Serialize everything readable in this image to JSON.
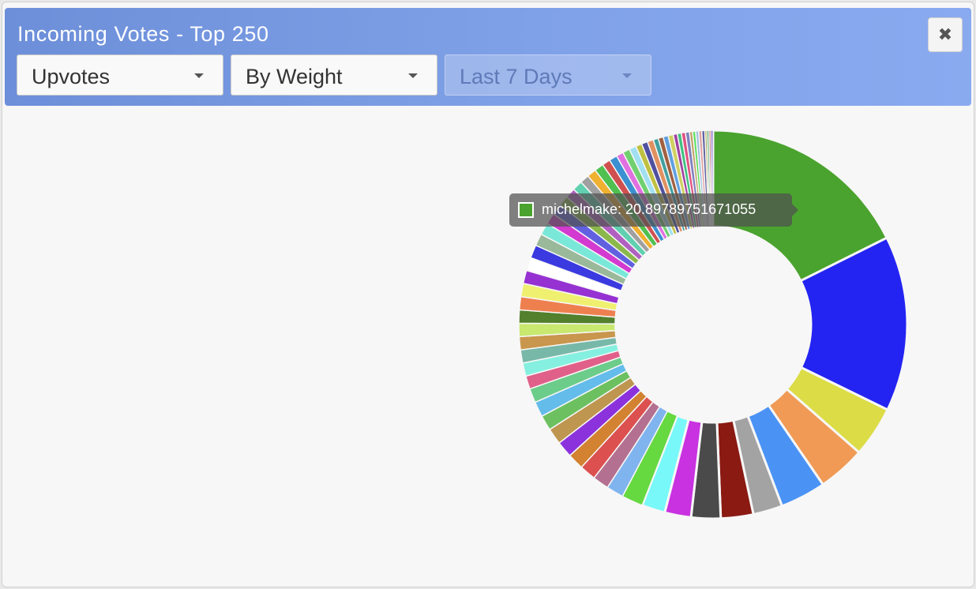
{
  "window": {
    "title": "Incoming Votes - Top 250",
    "close_label": "✖"
  },
  "filters": {
    "vote_type": "Upvotes",
    "sort_by": "By Weight",
    "time_range": "Last 7 Days"
  },
  "tooltip": {
    "text": "michelmake: 20.89789751671055",
    "color": "#4aa32e"
  },
  "chart_data": {
    "type": "pie",
    "subtype": "donut",
    "values": [
      20.89789751671055,
      17.3,
      5.0,
      4.7,
      4.5,
      2.9,
      3.2,
      2.9,
      2.6,
      2.3,
      2.1,
      1.7,
      1.6,
      1.6,
      1.6,
      1.6,
      1.6,
      1.5,
      1.5,
      1.4,
      1.3,
      1.3,
      1.3,
      1.3,
      1.3,
      1.3,
      1.3,
      1.3,
      1.3,
      1.3,
      1.3,
      1.2,
      1.2,
      1.1,
      1.1,
      1.0,
      1.0,
      1.0,
      0.9,
      0.9,
      0.9,
      0.8,
      0.8,
      0.7,
      0.7,
      0.7,
      0.6,
      0.6,
      0.6,
      0.5,
      0.5,
      0.5,
      0.5,
      0.4,
      0.4,
      0.4,
      0.4,
      0.3,
      0.3,
      0.3,
      0.3,
      0.3,
      0.2,
      0.2,
      0.2,
      0.2
    ],
    "colors": [
      "#4aa32e",
      "#2424f2",
      "#dcdc46",
      "#f09a55",
      "#4a93f5",
      "#a3a3a3",
      "#8a1a12",
      "#4a4a4a",
      "#c832e0",
      "#78f8f8",
      "#66d840",
      "#80b4ee",
      "#b47090",
      "#dc5050",
      "#d28230",
      "#8c32dc",
      "#bf9650",
      "#6cc060",
      "#64bcea",
      "#6ccc8a",
      "#e0608a",
      "#86f0e0",
      "#78b8a8",
      "#c8964c",
      "#c8e870",
      "#52802c",
      "#ee8050",
      "#f0f070",
      "#9632d2",
      "#ffffff",
      "#3a3ae0",
      "#9ab89a",
      "#7ae8d8",
      "#d23ad0",
      "#6060e0",
      "#8ab84a",
      "#b060c0",
      "#60d0b0",
      "#a0a0a0",
      "#f0b030",
      "#50c050",
      "#d05050",
      "#3a90d0",
      "#e070e0",
      "#70d070",
      "#a0e0f0",
      "#c0c040",
      "#5050a0",
      "#e09060",
      "#40a0a0",
      "#a06040",
      "#60a0e0",
      "#d0d060",
      "#a040a0",
      "#40c080",
      "#e05080",
      "#8080c0",
      "#c0a060",
      "#60e060",
      "#a0c0e0",
      "#e0a0a0",
      "#6060a0",
      "#a0a040",
      "#40a060",
      "#c06060",
      "#6040c0"
    ],
    "highlighted": "michelmake"
  }
}
